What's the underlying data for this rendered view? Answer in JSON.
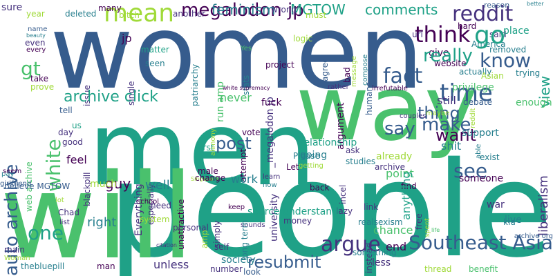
{
  "colors": {
    "background": "#ffffff",
    "palette": [
      "#440154",
      "#46327e",
      "#365c8d",
      "#277f8e",
      "#1fa187",
      "#4ac16d",
      "#a0da39",
      "#fde725"
    ]
  },
  "words": [
    {
      "text": "women",
      "color": "#365c8d"
    },
    {
      "text": "men",
      "color": "#1fa187"
    },
    {
      "text": "way",
      "color": "#4ac16d"
    },
    {
      "text": "people",
      "color": "#1fa187"
    },
    {
      "text": "will",
      "color": "#4ac16d"
    },
    {
      "text": "mean",
      "color": "#a0da39"
    },
    {
      "text": "megalodon jp",
      "color": "#440154"
    },
    {
      "text": "feminism",
      "color": "#277f8e"
    },
    {
      "text": "MGTOW",
      "color": "#1fa187"
    },
    {
      "text": "comments",
      "color": "#1fa187"
    },
    {
      "text": "reddit",
      "color": "#46327e"
    },
    {
      "text": "reason",
      "color": "#365c8d"
    },
    {
      "text": "better",
      "color": "#277f8e"
    },
    {
      "text": "sure",
      "color": "#46327e"
    },
    {
      "text": "year",
      "color": "#a0da39"
    },
    {
      "text": "deleted",
      "color": "#277f8e"
    },
    {
      "text": "many",
      "color": "#440154"
    },
    {
      "text": "bitch",
      "color": "#a0da39"
    },
    {
      "text": "another",
      "color": "#46327e"
    },
    {
      "text": "wrong",
      "color": "#46327e"
    },
    {
      "text": "must",
      "color": "#a0da39"
    },
    {
      "text": "hard",
      "color": "#440154"
    },
    {
      "text": "said",
      "color": "#46327e"
    },
    {
      "text": "America",
      "color": "#277f8e"
    },
    {
      "text": "jp",
      "color": "#440154"
    },
    {
      "text": "_megalodon jp",
      "color": "#46327e"
    },
    {
      "text": "think",
      "color": "#440154"
    },
    {
      "text": "go",
      "color": "#1fa187"
    },
    {
      "text": "give",
      "color": "#440154"
    },
    {
      "text": "place",
      "color": "#1fa187"
    },
    {
      "text": "url",
      "color": "#46327e"
    },
    {
      "text": "auto archive",
      "color": "#365c8d"
    },
    {
      "text": "logic",
      "color": "#a0da39"
    },
    {
      "text": "agree",
      "color": "#365c8d"
    },
    {
      "text": "compose",
      "color": "#277f8e"
    },
    {
      "text": "message",
      "color": "#a0da39"
    },
    {
      "text": "really",
      "color": "#1fa187"
    },
    {
      "text": "know",
      "color": "#365c8d"
    },
    {
      "text": "removed",
      "color": "#277f8e"
    },
    {
      "text": "view",
      "color": "#1fa187"
    },
    {
      "text": "gt",
      "color": "#4ac16d"
    },
    {
      "text": "name",
      "color": "#365c8d"
    },
    {
      "text": "beauty",
      "color": "#277f8e"
    },
    {
      "text": "even",
      "color": "#46327e"
    },
    {
      "text": "every",
      "color": "#440154"
    },
    {
      "text": "matter",
      "color": "#1fa187"
    },
    {
      "text": "seen",
      "color": "#277f8e"
    },
    {
      "text": "patriarchy",
      "color": "#277f8e"
    },
    {
      "text": "Yes",
      "color": "#4ac16d"
    },
    {
      "text": "humans",
      "color": "#365c8d"
    },
    {
      "text": "bad",
      "color": "#440154"
    },
    {
      "text": "website",
      "color": "#440154"
    },
    {
      "text": "fact",
      "color": "#365c8d"
    },
    {
      "text": "actually",
      "color": "#277f8e"
    },
    {
      "text": "trying",
      "color": "#277f8e"
    },
    {
      "text": "argument",
      "color": "#440154"
    },
    {
      "text": "project",
      "color": "#440154"
    },
    {
      "text": "Asian",
      "color": "#a0da39"
    },
    {
      "text": "time",
      "color": "#365c8d"
    },
    {
      "text": "take",
      "color": "#440154"
    },
    {
      "text": "prove",
      "color": "#a0da39"
    },
    {
      "text": "issue",
      "color": "#46327e"
    },
    {
      "text": "single",
      "color": "#46327e"
    },
    {
      "text": "run amp",
      "color": "#4ac16d"
    },
    {
      "text": "stats",
      "color": "#277f8e"
    },
    {
      "text": "privilege",
      "color": "#4ac16d"
    },
    {
      "text": "rather",
      "color": "#46327e"
    },
    {
      "text": "irrefutable",
      "color": "#440154"
    },
    {
      "text": "white supremacy",
      "color": "#440154"
    },
    {
      "text": "archive click",
      "color": "#1fa187"
    },
    {
      "text": "white",
      "color": "#4ac16d"
    },
    {
      "text": "never",
      "color": "#4ac16d"
    },
    {
      "text": "fuck",
      "color": "#440154"
    },
    {
      "text": "debate",
      "color": "#365c8d"
    },
    {
      "text": "enough",
      "color": "#4ac16d"
    },
    {
      "text": "still",
      "color": "#46327e"
    },
    {
      "text": "thing",
      "color": "#365c8d"
    },
    {
      "text": "reddit",
      "color": "#a0da39"
    },
    {
      "text": "couples",
      "color": "#46327e"
    },
    {
      "text": "tell",
      "color": "#365c8d"
    },
    {
      "text": "maybe",
      "color": "#a0da39"
    },
    {
      "text": "make",
      "color": "#365c8d"
    },
    {
      "text": "say",
      "color": "#365c8d"
    },
    {
      "text": "want",
      "color": "#440154"
    },
    {
      "text": "support",
      "color": "#277f8e"
    },
    {
      "text": "shit",
      "color": "#277f8e"
    },
    {
      "text": "us",
      "color": "#1fa187"
    },
    {
      "text": "day",
      "color": "#46327e"
    },
    {
      "text": "good",
      "color": "#46327e"
    },
    {
      "text": "web archive",
      "color": "#4ac16d"
    },
    {
      "text": "blackpill",
      "color": "#46327e"
    },
    {
      "text": "alimony",
      "color": "#a0da39"
    },
    {
      "text": "unattractive",
      "color": "#440154"
    },
    {
      "text": "vote",
      "color": "#440154"
    },
    {
      "text": "feel",
      "color": "#440154"
    },
    {
      "text": "post",
      "color": "#365c8d"
    },
    {
      "text": "ask",
      "color": "#46327e"
    },
    {
      "text": "studies",
      "color": "#277f8e"
    },
    {
      "text": "Let",
      "color": "#440154"
    },
    {
      "text": "see",
      "color": "#365c8d"
    },
    {
      "text": "already",
      "color": "#a0da39"
    },
    {
      "text": "exist",
      "color": "#277f8e"
    },
    {
      "text": "able",
      "color": "#277f8e"
    },
    {
      "text": "going",
      "color": "#277f8e"
    },
    {
      "text": "relationship",
      "color": "#1fa187"
    },
    {
      "text": "archive",
      "color": "#46327e"
    },
    {
      "text": "pay",
      "color": "#277f8e"
    },
    {
      "text": "girlfriend",
      "color": "#365c8d"
    },
    {
      "text": "first",
      "color": "#1fa187"
    },
    {
      "text": "attempt",
      "color": "#440154"
    },
    {
      "text": "university",
      "color": "#46327e"
    },
    {
      "text": "Please",
      "color": "#277f8e"
    },
    {
      "text": "getting",
      "color": "#a0da39"
    },
    {
      "text": "Singapore",
      "color": "#a0da39"
    },
    {
      "text": "point",
      "color": "#4ac16d"
    },
    {
      "text": "someone",
      "color": "#440154"
    },
    {
      "text": "guy",
      "color": "#440154"
    },
    {
      "text": "seem",
      "color": "#440154"
    },
    {
      "text": "Everything",
      "color": "#46327e"
    },
    {
      "text": "male",
      "color": "#440154"
    },
    {
      "text": "especially",
      "color": "#46327e"
    },
    {
      "text": "believe MGTOW",
      "color": "#365c8d"
    },
    {
      "text": "much",
      "color": "#a0da39"
    },
    {
      "text": "well",
      "color": "#277f8e"
    },
    {
      "text": "change",
      "color": "#440154"
    },
    {
      "text": "work",
      "color": "#277f8e"
    },
    {
      "text": "learn",
      "color": "#46327e"
    },
    {
      "text": "now",
      "color": "#277f8e"
    },
    {
      "text": "back",
      "color": "#440154"
    },
    {
      "text": "find",
      "color": "#440154"
    },
    {
      "text": "anything",
      "color": "#1fa187"
    },
    {
      "text": "incel",
      "color": "#46327e"
    },
    {
      "text": "liberalism",
      "color": "#46327e"
    },
    {
      "text": "right",
      "color": "#277f8e"
    },
    {
      "text": "need",
      "color": "#46327e"
    },
    {
      "text": "system",
      "color": "#a0da39"
    },
    {
      "text": "school",
      "color": "#440154"
    },
    {
      "text": "lot",
      "color": "#a0da39"
    },
    {
      "text": "Chad",
      "color": "#46327e"
    },
    {
      "text": "list",
      "color": "#46327e"
    },
    {
      "text": "amp",
      "color": "#a0da39"
    },
    {
      "text": "simply",
      "color": "#46327e"
    },
    {
      "text": "keep",
      "color": "#440154"
    },
    {
      "text": "sounds",
      "color": "#46327e"
    },
    {
      "text": "long term",
      "color": "#277f8e"
    },
    {
      "text": "lazy",
      "color": "#46327e"
    },
    {
      "text": "link",
      "color": "#46327e"
    },
    {
      "text": "free",
      "color": "#46327e"
    },
    {
      "text": "war",
      "color": "#46327e"
    },
    {
      "text": "kid",
      "color": "#277f8e"
    },
    {
      "text": "live",
      "color": "#277f8e"
    },
    {
      "text": "personal",
      "color": "#46327e"
    },
    {
      "text": "instead",
      "color": "#46327e"
    },
    {
      "text": "money",
      "color": "#46327e"
    },
    {
      "text": "source understand",
      "color": "#1fa187"
    },
    {
      "text": "chance",
      "color": "#4ac16d"
    },
    {
      "text": "archive org",
      "color": "#365c8d"
    },
    {
      "text": "one",
      "color": "#1fa187"
    },
    {
      "text": "argue",
      "color": "#46327e"
    },
    {
      "text": "main",
      "color": "#46327e"
    },
    {
      "text": "Woman",
      "color": "#a0da39"
    },
    {
      "text": "self",
      "color": "#46327e"
    },
    {
      "text": "realsexism",
      "color": "#277f8e"
    },
    {
      "text": "resubmit",
      "color": "#365c8d"
    },
    {
      "text": "Southeast Asia",
      "color": "#365c8d"
    },
    {
      "text": "citation",
      "color": "#46327e"
    },
    {
      "text": "life",
      "color": "#4ac16d"
    },
    {
      "text": "end",
      "color": "#440154"
    },
    {
      "text": "spent",
      "color": "#a0da39"
    },
    {
      "text": "look",
      "color": "#365c8d"
    },
    {
      "text": "society",
      "color": "#277f8e"
    },
    {
      "text": "less",
      "color": "#46327e"
    },
    {
      "text": "something",
      "color": "#277f8e"
    },
    {
      "text": "thebluepill",
      "color": "#277f8e"
    },
    {
      "text": "man",
      "color": "#440154"
    },
    {
      "text": "unless",
      "color": "#46327e"
    },
    {
      "text": "number",
      "color": "#46327e"
    },
    {
      "text": "thread",
      "color": "#a0da39"
    },
    {
      "text": "benefit",
      "color": "#4ac16d"
    }
  ]
}
